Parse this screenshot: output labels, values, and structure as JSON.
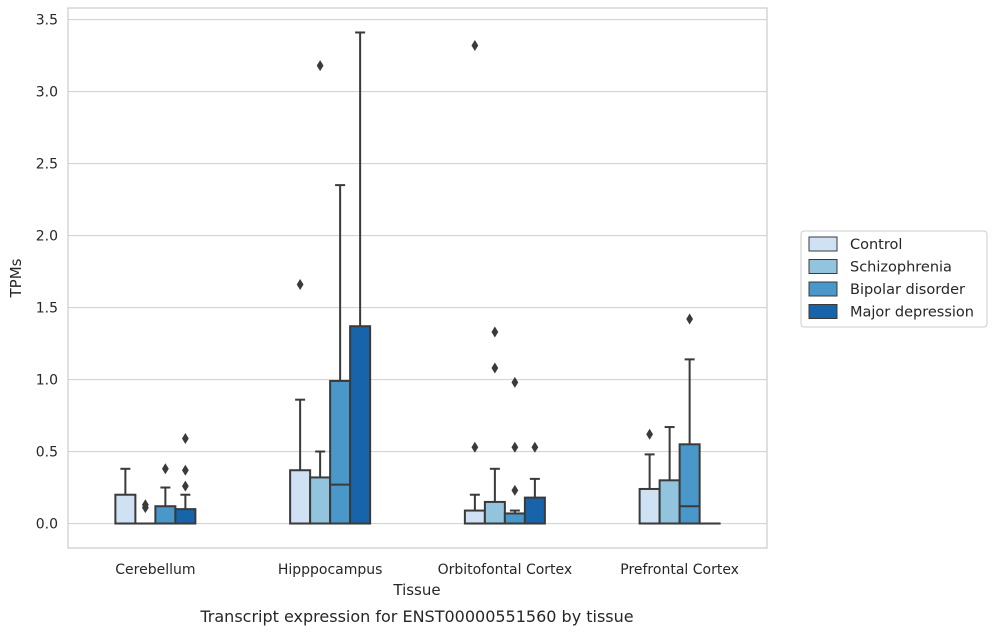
{
  "chart_data": {
    "type": "box",
    "caption": "Transcript expression for ENST00000551560 by tissue",
    "xlabel": "Tissue",
    "ylabel": "TPMs",
    "ylim": [
      -0.17,
      3.58
    ],
    "yticks": [
      "0.0",
      "0.5",
      "1.0",
      "1.5",
      "2.0",
      "2.5",
      "3.0",
      "3.5"
    ],
    "ytick_values": [
      0,
      0.5,
      1.0,
      1.5,
      2.0,
      2.5,
      3.0,
      3.5
    ],
    "grid": "horizontal",
    "legend_position": "right",
    "categories": [
      "Cerebellum",
      "Hipppocampus",
      "Orbitofontal Cortex",
      "Prefrontal Cortex"
    ],
    "series": [
      {
        "name": "Control",
        "color": "#cfe1f2",
        "boxes": [
          {
            "low": 0.0,
            "q1": 0.0,
            "median": 0.0,
            "q3": 0.2,
            "high": 0.38,
            "outliers": []
          },
          {
            "low": 0.0,
            "q1": 0.0,
            "median": 0.0,
            "q3": 0.37,
            "high": 0.86,
            "outliers": [
              1.66
            ]
          },
          {
            "low": 0.0,
            "q1": 0.0,
            "median": 0.0,
            "q3": 0.09,
            "high": 0.2,
            "outliers": [
              0.53,
              3.32
            ]
          },
          {
            "low": 0.0,
            "q1": 0.0,
            "median": 0.0,
            "q3": 0.24,
            "high": 0.48,
            "outliers": [
              0.62
            ]
          }
        ]
      },
      {
        "name": "Schizophrenia",
        "color": "#93c4de",
        "boxes": [
          {
            "low": 0.0,
            "q1": 0.0,
            "median": 0.0,
            "q3": 0.0,
            "high": 0.0,
            "outliers": [
              0.11,
              0.13
            ]
          },
          {
            "low": 0.0,
            "q1": 0.0,
            "median": 0.0,
            "q3": 0.32,
            "high": 0.5,
            "outliers": [
              3.18
            ]
          },
          {
            "low": 0.0,
            "q1": 0.0,
            "median": 0.0,
            "q3": 0.15,
            "high": 0.38,
            "outliers": [
              1.08,
              1.33
            ]
          },
          {
            "low": 0.0,
            "q1": 0.0,
            "median": 0.0,
            "q3": 0.3,
            "high": 0.67,
            "outliers": []
          }
        ]
      },
      {
        "name": "Bipolar disorder",
        "color": "#4a98c9",
        "boxes": [
          {
            "low": 0.0,
            "q1": 0.0,
            "median": 0.0,
            "q3": 0.12,
            "high": 0.25,
            "outliers": [
              0.38
            ]
          },
          {
            "low": 0.0,
            "q1": 0.0,
            "median": 0.27,
            "q3": 0.99,
            "high": 2.35,
            "outliers": []
          },
          {
            "low": 0.0,
            "q1": 0.0,
            "median": 0.0,
            "q3": 0.07,
            "high": 0.09,
            "outliers": [
              0.23,
              0.53,
              0.98
            ]
          },
          {
            "low": 0.0,
            "q1": 0.0,
            "median": 0.12,
            "q3": 0.55,
            "high": 1.14,
            "outliers": [
              1.42
            ]
          }
        ]
      },
      {
        "name": "Major depression",
        "color": "#1764ab",
        "boxes": [
          {
            "low": 0.0,
            "q1": 0.0,
            "median": 0.0,
            "q3": 0.1,
            "high": 0.2,
            "outliers": [
              0.26,
              0.37,
              0.59
            ]
          },
          {
            "low": 0.0,
            "q1": 0.0,
            "median": 0.0,
            "q3": 1.37,
            "high": 3.41,
            "outliers": []
          },
          {
            "low": 0.0,
            "q1": 0.0,
            "median": 0.0,
            "q3": 0.18,
            "high": 0.31,
            "outliers": [
              0.53
            ]
          },
          {
            "low": 0.0,
            "q1": 0.0,
            "median": 0.0,
            "q3": 0.0,
            "high": 0.0,
            "outliers": []
          }
        ]
      }
    ]
  }
}
